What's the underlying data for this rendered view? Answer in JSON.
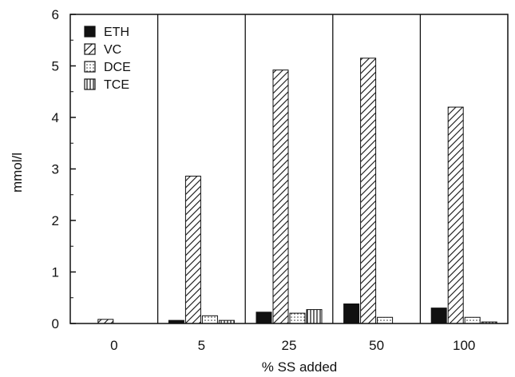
{
  "chart_data": {
    "type": "bar",
    "xlabel": "% SS added",
    "ylabel": "mmol/l",
    "ylim": [
      0,
      6
    ],
    "yticks": [
      0,
      1,
      2,
      3,
      4,
      5,
      6
    ],
    "categories": [
      "0",
      "5",
      "25",
      "50",
      "100"
    ],
    "grid": "vertical separators between categories",
    "legend_placement": "top-left",
    "series": [
      {
        "name": "ETH",
        "pattern": "solid-black",
        "values": [
          0.0,
          0.06,
          0.22,
          0.38,
          0.3
        ]
      },
      {
        "name": "VC",
        "pattern": "diagonal-hatch",
        "values": [
          0.08,
          2.86,
          4.92,
          5.15,
          4.2
        ]
      },
      {
        "name": "DCE",
        "pattern": "light-dotted",
        "values": [
          0.0,
          0.15,
          0.2,
          0.12,
          0.12
        ]
      },
      {
        "name": "TCE",
        "pattern": "vertical-stripes",
        "values": [
          0.0,
          0.06,
          0.27,
          0.0,
          0.03
        ]
      }
    ]
  }
}
